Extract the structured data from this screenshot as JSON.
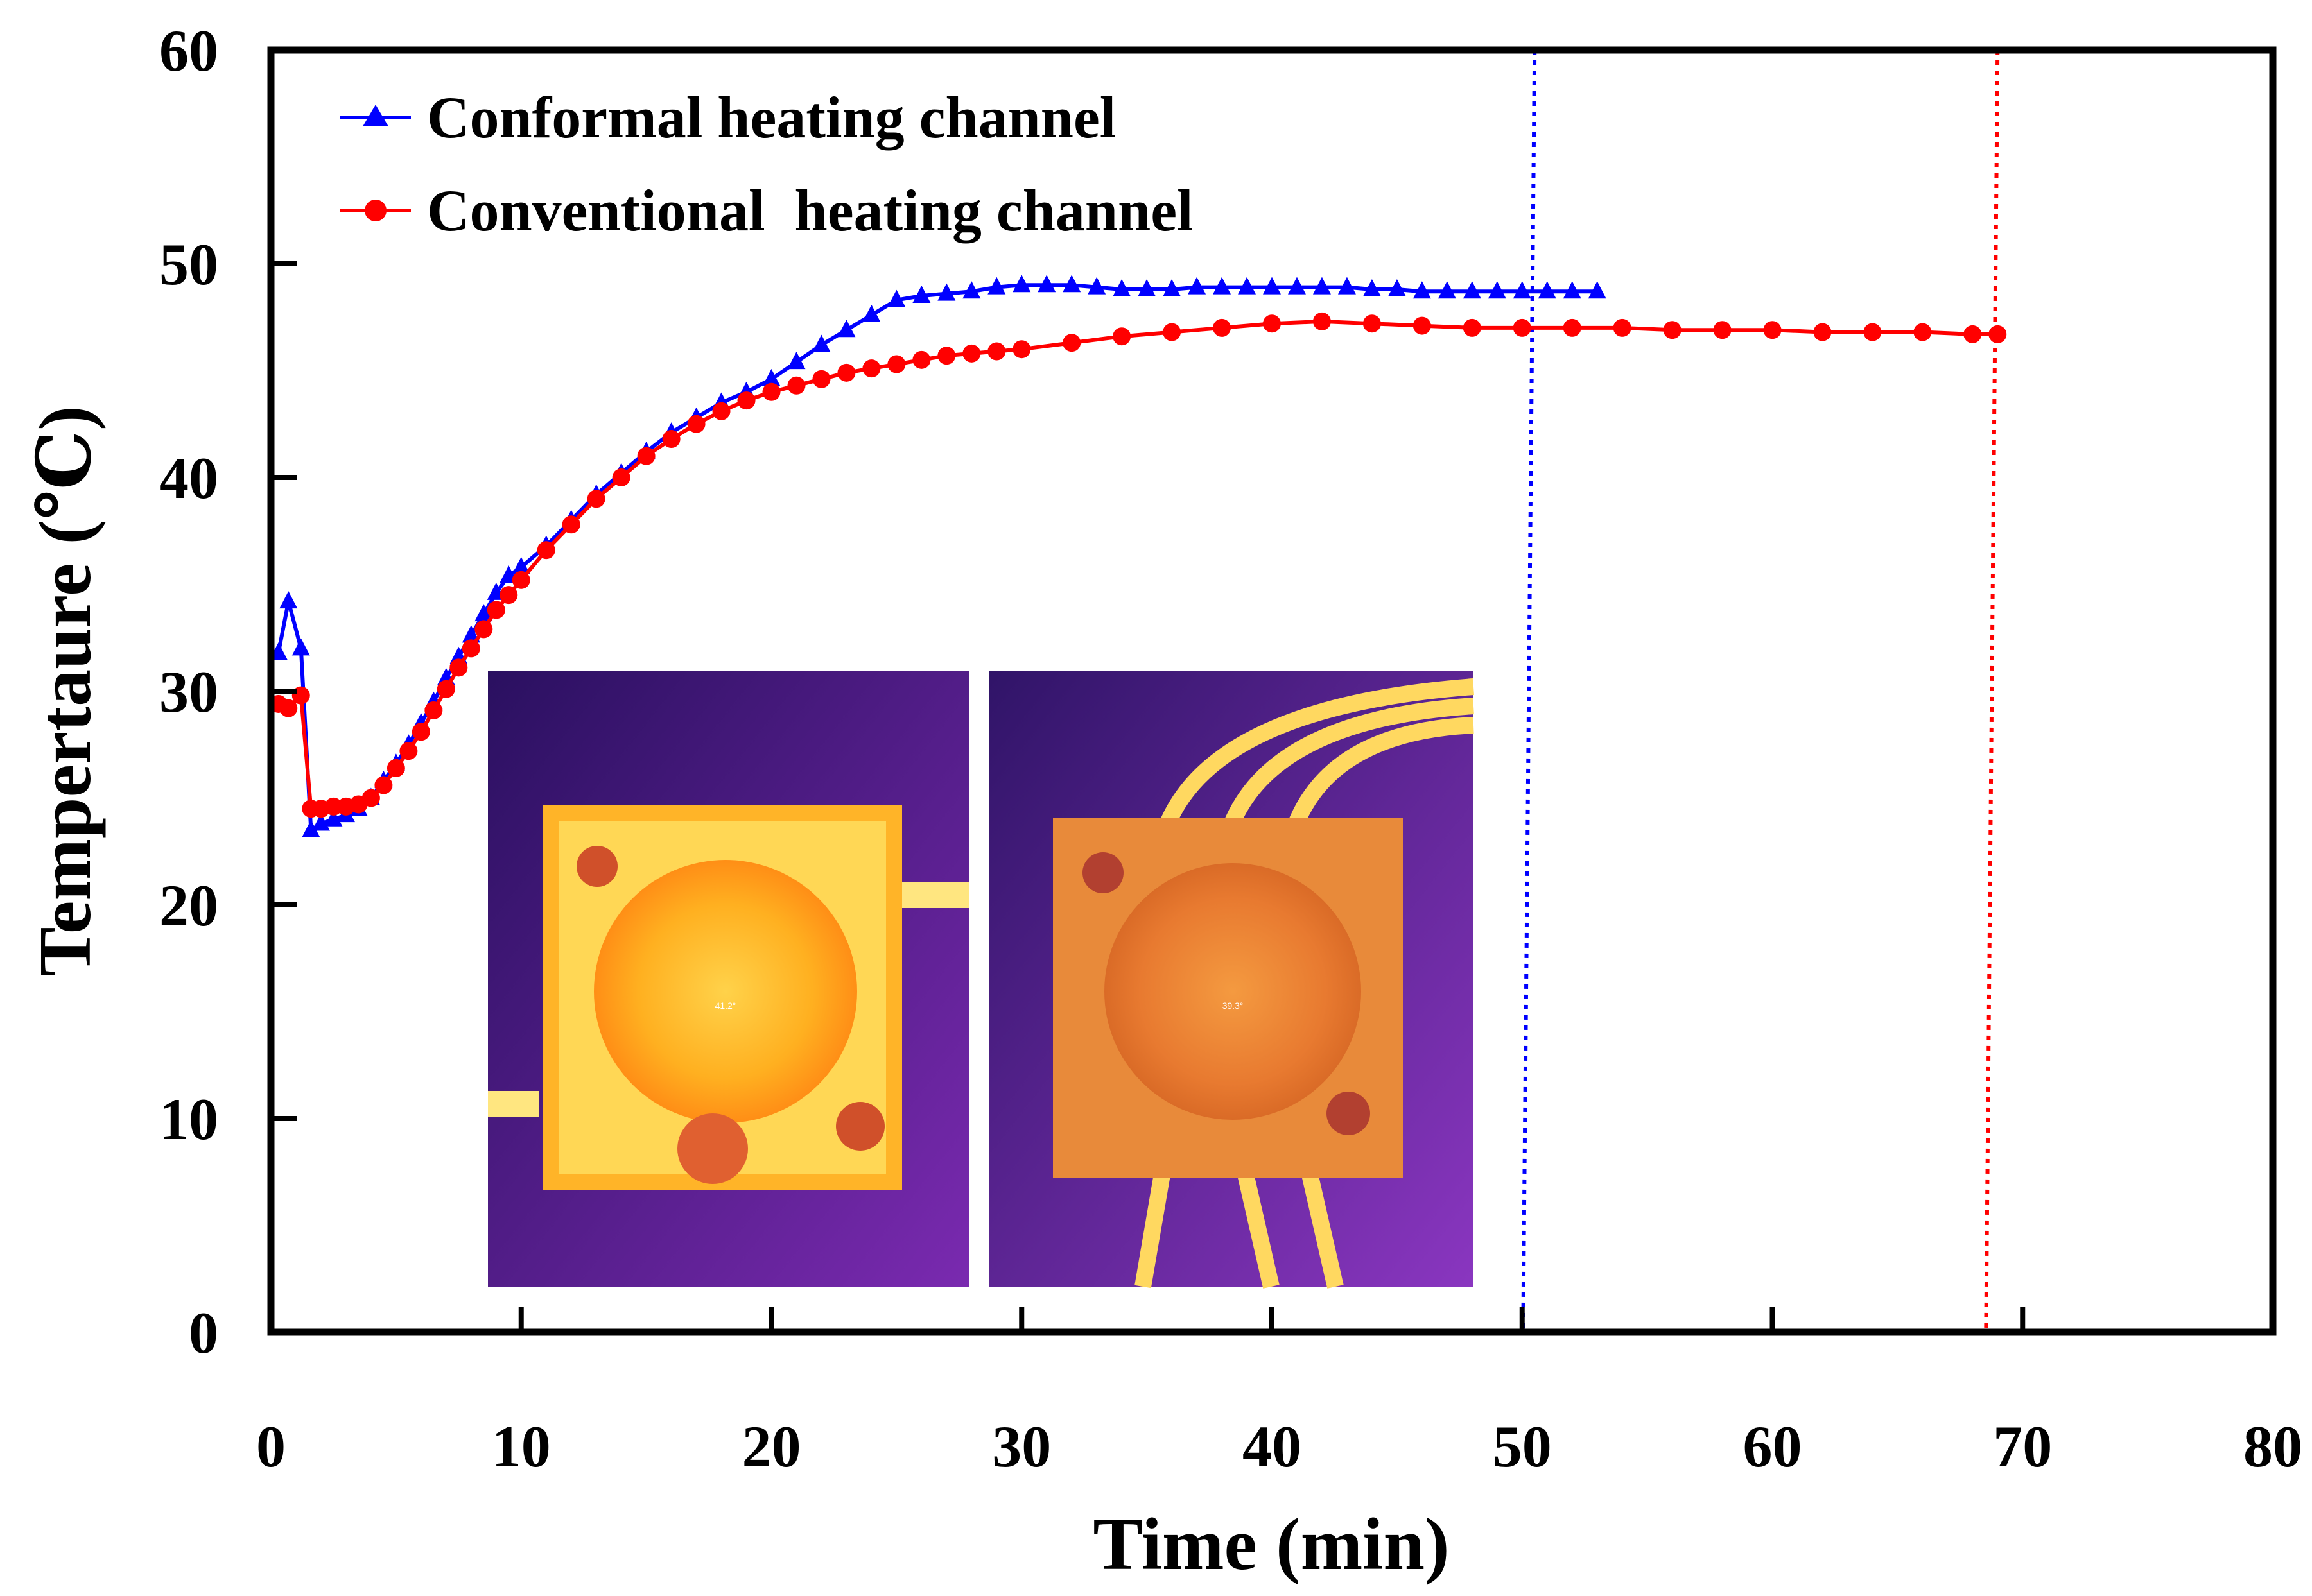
{
  "chart_data": {
    "type": "line",
    "xlabel": "Time (min)",
    "ylabel": "Tempertaure (℃)",
    "xlim": [
      0,
      80
    ],
    "ylim": [
      0,
      60
    ],
    "xticks": [
      0,
      10,
      20,
      30,
      40,
      50,
      60,
      70,
      80
    ],
    "yticks": [
      0,
      10,
      20,
      30,
      40,
      50,
      60
    ],
    "grid": false,
    "legend_position": "top-left",
    "series": [
      {
        "name": "Conformal heating channel",
        "color": "#0000ff",
        "marker": "triangle",
        "x": [
          0.3,
          0.7,
          1.2,
          1.6,
          2.0,
          2.5,
          3.0,
          3.5,
          4.0,
          4.5,
          5.0,
          5.5,
          6.0,
          6.5,
          7.0,
          7.5,
          8.0,
          8.5,
          9.0,
          9.5,
          10.0,
          11.0,
          12.0,
          13.0,
          14.0,
          15.0,
          16.0,
          17.0,
          18.0,
          19.0,
          20.0,
          21.0,
          22.0,
          23.0,
          24.0,
          25.0,
          26.0,
          27.0,
          28.0,
          29.0,
          30.0,
          31.0,
          32.0,
          33.0,
          34.0,
          35.0,
          36.0,
          37.0,
          38.0,
          39.0,
          40.0,
          41.0,
          42.0,
          43.0,
          44.0,
          45.0,
          46.0,
          47.0,
          48.0,
          49.0,
          50.0,
          51.0,
          52.0,
          53.0
        ],
        "y": [
          31.8,
          34.2,
          32.0,
          23.5,
          23.8,
          24.0,
          24.2,
          24.5,
          25.0,
          25.8,
          26.6,
          27.5,
          28.5,
          29.5,
          30.6,
          31.6,
          32.6,
          33.6,
          34.6,
          35.4,
          35.8,
          36.8,
          38.0,
          39.2,
          40.2,
          41.2,
          42.1,
          42.8,
          43.5,
          44.0,
          44.6,
          45.4,
          46.2,
          46.9,
          47.6,
          48.3,
          48.5,
          48.6,
          48.7,
          48.9,
          49.0,
          49.0,
          49.0,
          48.9,
          48.8,
          48.8,
          48.8,
          48.9,
          48.9,
          48.9,
          48.9,
          48.9,
          48.9,
          48.9,
          48.8,
          48.8,
          48.7,
          48.7,
          48.7,
          48.7,
          48.7,
          48.7,
          48.7,
          48.7
        ]
      },
      {
        "name": "Conventional  heating channel",
        "color": "#ff0000",
        "marker": "circle",
        "x": [
          0.3,
          0.7,
          1.2,
          1.6,
          2.0,
          2.5,
          3.0,
          3.5,
          4.0,
          4.5,
          5.0,
          5.5,
          6.0,
          6.5,
          7.0,
          7.5,
          8.0,
          8.5,
          9.0,
          9.5,
          10.0,
          11.0,
          12.0,
          13.0,
          14.0,
          15.0,
          16.0,
          17.0,
          18.0,
          19.0,
          20.0,
          21.0,
          22.0,
          23.0,
          24.0,
          25.0,
          26.0,
          27.0,
          28.0,
          29.0,
          30.0,
          32.0,
          34.0,
          36.0,
          38.0,
          40.0,
          42.0,
          44.0,
          46.0,
          48.0,
          50.0,
          52.0,
          54.0,
          56.0,
          58.0,
          60.0,
          62.0,
          64.0,
          66.0,
          68.0,
          69.0
        ],
        "y": [
          29.4,
          29.2,
          29.8,
          24.5,
          24.5,
          24.6,
          24.6,
          24.7,
          25.0,
          25.6,
          26.4,
          27.2,
          28.1,
          29.1,
          30.1,
          31.1,
          32.0,
          32.9,
          33.8,
          34.5,
          35.2,
          36.6,
          37.8,
          39.0,
          40.0,
          41.0,
          41.8,
          42.5,
          43.1,
          43.6,
          44.0,
          44.3,
          44.6,
          44.9,
          45.1,
          45.3,
          45.5,
          45.7,
          45.8,
          45.9,
          46.0,
          46.3,
          46.6,
          46.8,
          47.0,
          47.2,
          47.3,
          47.2,
          47.1,
          47.0,
          47.0,
          47.0,
          47.0,
          46.9,
          46.9,
          46.9,
          46.8,
          46.8,
          46.8,
          46.7,
          46.7
        ]
      }
    ],
    "reference_lines": [
      {
        "x": 50.5,
        "color": "#0000ff",
        "style": "dotted"
      },
      {
        "x": 69.0,
        "color": "#ff0000",
        "style": "dotted"
      }
    ]
  },
  "insets": {
    "left_readout": "41.2°",
    "right_readout": "39.3°"
  }
}
